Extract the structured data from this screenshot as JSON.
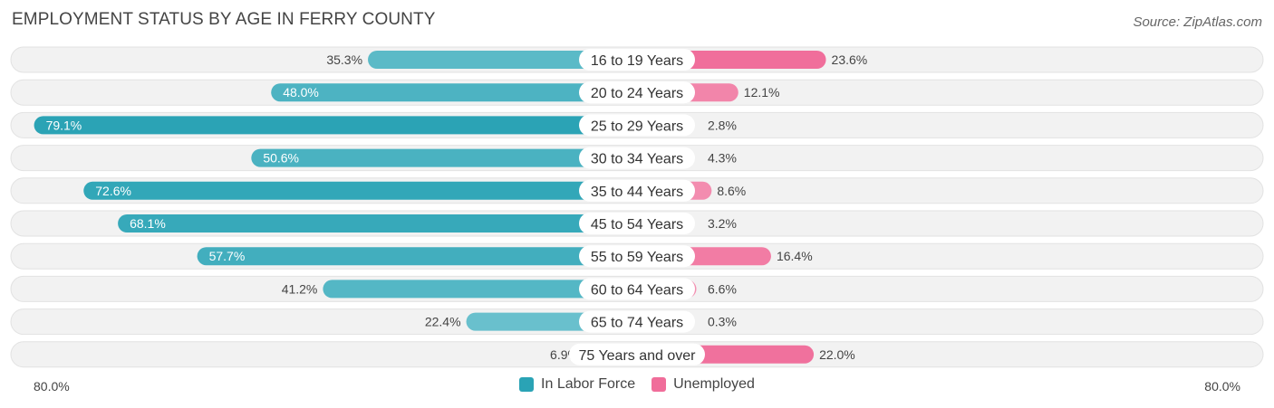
{
  "title": "EMPLOYMENT STATUS BY AGE IN FERRY COUNTY",
  "source": "Source: ZipAtlas.com",
  "colors": {
    "labor": "#2aa3b5",
    "labor_light": "#79c8d3",
    "unemployed": "#f06d9a",
    "unemployed_light": "#f6a9c2",
    "row_bg": "#f1f1f1"
  },
  "axis": {
    "left_label": "80.0%",
    "right_label": "80.0%"
  },
  "legend": {
    "labor": "In Labor Force",
    "unemployed": "Unemployed"
  },
  "chart_data": {
    "type": "bar",
    "orientation": "horizontal-diverging",
    "title": "EMPLOYMENT STATUS BY AGE IN FERRY COUNTY",
    "xlim": [
      -80,
      80
    ],
    "categories": [
      "16 to 19 Years",
      "20 to 24 Years",
      "25 to 29 Years",
      "30 to 34 Years",
      "35 to 44 Years",
      "45 to 54 Years",
      "55 to 59 Years",
      "60 to 64 Years",
      "65 to 74 Years",
      "75 Years and over"
    ],
    "series": [
      {
        "name": "In Labor Force",
        "values": [
          35.3,
          48.0,
          79.1,
          50.6,
          72.6,
          68.1,
          57.7,
          41.2,
          22.4,
          6.9
        ],
        "labels": [
          "35.3%",
          "48.0%",
          "79.1%",
          "50.6%",
          "72.6%",
          "68.1%",
          "57.7%",
          "41.2%",
          "22.4%",
          "6.9%"
        ]
      },
      {
        "name": "Unemployed",
        "values": [
          23.6,
          12.1,
          2.8,
          4.3,
          8.6,
          3.2,
          16.4,
          6.6,
          0.3,
          22.0
        ],
        "labels": [
          "23.6%",
          "12.1%",
          "2.8%",
          "4.3%",
          "8.6%",
          "3.2%",
          "16.4%",
          "6.6%",
          "0.3%",
          "22.0%"
        ]
      }
    ]
  }
}
